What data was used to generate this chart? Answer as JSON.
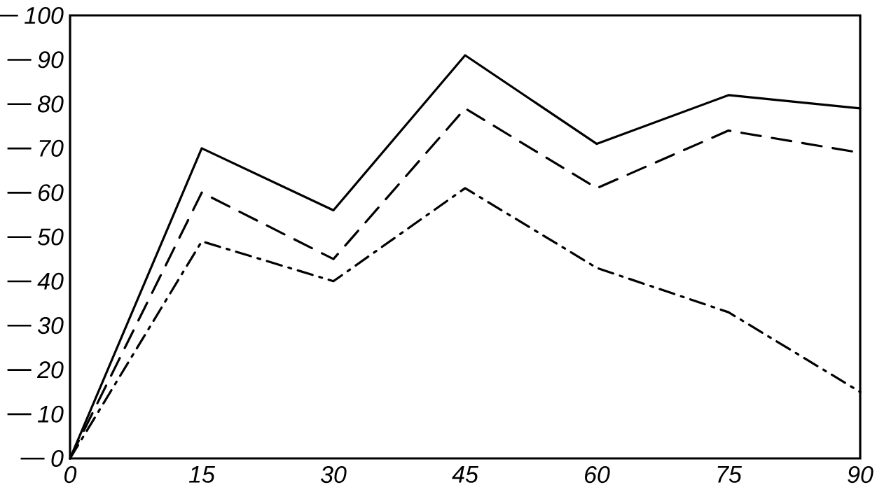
{
  "chart_data": {
    "type": "line",
    "x": [
      0,
      15,
      30,
      45,
      60,
      75,
      90
    ],
    "series": [
      {
        "color": "#000000",
        "line_style": "solid",
        "values": [
          0,
          70,
          56,
          91,
          71,
          82,
          79
        ]
      },
      {
        "color": "#000000",
        "line_style": "dashed",
        "values": [
          0,
          60,
          45,
          79,
          61,
          74,
          69
        ]
      },
      {
        "color": "#000000",
        "line_style": "dashdot",
        "values": [
          0,
          49,
          40,
          61,
          43,
          33,
          15
        ]
      }
    ],
    "xlim": [
      0,
      90
    ],
    "xticks": [
      0,
      15,
      30,
      45,
      60,
      75,
      90
    ],
    "ylim": [
      0,
      100
    ],
    "yticks": [
      0,
      10,
      20,
      30,
      40,
      50,
      60,
      70,
      80,
      90,
      100
    ]
  }
}
